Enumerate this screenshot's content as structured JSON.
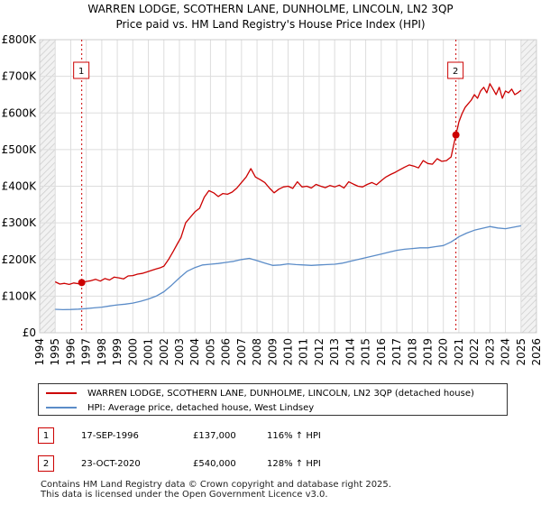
{
  "chart_data": {
    "type": "line",
    "title": "WARREN LODGE, SCOTHERN LANE, DUNHOLME, LINCOLN, LN2 3QP",
    "subtitle": "Price paid vs. HM Land Registry's House Price Index (HPI)",
    "xlim": [
      1994,
      2026
    ],
    "ylim": [
      0,
      800000
    ],
    "y_ticks": [
      0,
      100000,
      200000,
      300000,
      400000,
      500000,
      600000,
      700000,
      800000
    ],
    "y_tick_labels": [
      "£0",
      "£100K",
      "£200K",
      "£300K",
      "£400K",
      "£500K",
      "£600K",
      "£700K",
      "£800K"
    ],
    "x_ticks": [
      1994,
      1995,
      1996,
      1997,
      1998,
      1999,
      2000,
      2001,
      2002,
      2003,
      2004,
      2005,
      2006,
      2007,
      2008,
      2009,
      2010,
      2011,
      2012,
      2013,
      2014,
      2015,
      2016,
      2017,
      2018,
      2019,
      2020,
      2021,
      2022,
      2023,
      2024,
      2025,
      2026
    ],
    "x_tick_labels": [
      "1994",
      "1995",
      "1996",
      "1997",
      "1998",
      "1999",
      "2000",
      "2001",
      "2002",
      "2003",
      "2004",
      "2005",
      "2006",
      "2007",
      "2008",
      "2009",
      "2010",
      "2011",
      "2012",
      "2013",
      "2014",
      "2015",
      "2016",
      "2017",
      "2018",
      "2019",
      "2020",
      "2021",
      "2022",
      "2023",
      "2024",
      "2025",
      "2026"
    ],
    "grid": true,
    "hatched_ranges": [
      [
        1994,
        1995
      ],
      [
        2025,
        2026
      ]
    ],
    "series": [
      {
        "name": "WARREN LODGE, SCOTHERN LANE, DUNHOLME, LINCOLN, LN2 3QP (detached house)",
        "color": "#cc0000",
        "x": [
          1995.0,
          1995.3,
          1995.6,
          1995.9,
          1996.2,
          1996.5,
          1996.71,
          1997.0,
          1997.3,
          1997.6,
          1997.9,
          1998.2,
          1998.5,
          1998.8,
          1999.1,
          1999.4,
          1999.7,
          2000.0,
          2000.3,
          2000.6,
          2000.9,
          2001.2,
          2001.5,
          2001.8,
          2002.0,
          2002.3,
          2002.6,
          2002.9,
          2003.1,
          2003.4,
          2003.7,
          2004.0,
          2004.3,
          2004.6,
          2004.9,
          2005.2,
          2005.5,
          2005.8,
          2006.1,
          2006.4,
          2006.7,
          2007.0,
          2007.3,
          2007.6,
          2007.9,
          2008.2,
          2008.5,
          2008.8,
          2009.1,
          2009.4,
          2009.7,
          2010.0,
          2010.3,
          2010.6,
          2010.9,
          2011.2,
          2011.5,
          2011.8,
          2012.1,
          2012.4,
          2012.7,
          2013.0,
          2013.3,
          2013.6,
          2013.9,
          2014.2,
          2014.5,
          2014.8,
          2015.1,
          2015.4,
          2015.7,
          2016.0,
          2016.3,
          2016.6,
          2016.9,
          2017.2,
          2017.5,
          2017.8,
          2018.1,
          2018.4,
          2018.7,
          2019.0,
          2019.3,
          2019.6,
          2019.9,
          2020.2,
          2020.5,
          2020.81,
          2021.0,
          2021.2,
          2021.4,
          2021.6,
          2021.8,
          2022.0,
          2022.2,
          2022.4,
          2022.6,
          2022.8,
          2023.0,
          2023.2,
          2023.4,
          2023.6,
          2023.8,
          2024.0,
          2024.2,
          2024.4,
          2024.6,
          2024.8,
          2025.0
        ],
        "values": [
          139000,
          133000,
          135000,
          132000,
          136000,
          134000,
          137000,
          140000,
          142000,
          146000,
          141000,
          148000,
          144000,
          152000,
          150000,
          147000,
          155000,
          156000,
          160000,
          162000,
          166000,
          170000,
          174000,
          178000,
          182000,
          200000,
          222000,
          245000,
          260000,
          300000,
          315000,
          330000,
          340000,
          370000,
          388000,
          382000,
          372000,
          380000,
          378000,
          384000,
          395000,
          410000,
          425000,
          448000,
          425000,
          418000,
          410000,
          395000,
          382000,
          392000,
          398000,
          400000,
          394000,
          412000,
          398000,
          400000,
          395000,
          405000,
          400000,
          396000,
          402000,
          398000,
          403000,
          395000,
          412000,
          406000,
          400000,
          398000,
          405000,
          410000,
          404000,
          415000,
          425000,
          432000,
          438000,
          445000,
          452000,
          458000,
          455000,
          450000,
          470000,
          462000,
          460000,
          475000,
          468000,
          470000,
          480000,
          540000,
          575000,
          598000,
          615000,
          625000,
          635000,
          650000,
          640000,
          660000,
          670000,
          655000,
          680000,
          665000,
          650000,
          670000,
          640000,
          660000,
          655000,
          665000,
          650000,
          655000,
          662000
        ],
        "markers": [
          {
            "x": 1996.71,
            "y": 137000,
            "label": "1"
          },
          {
            "x": 2020.81,
            "y": 540000,
            "label": "2"
          }
        ]
      },
      {
        "name": "HPI: Average price, detached house, West Lindsey",
        "color": "#5b8cc8",
        "x": [
          1995.0,
          1995.5,
          1996.0,
          1996.5,
          1997.0,
          1997.5,
          1998.0,
          1998.5,
          1999.0,
          1999.5,
          2000.0,
          2000.5,
          2001.0,
          2001.5,
          2002.0,
          2002.5,
          2003.0,
          2003.5,
          2004.0,
          2004.5,
          2005.0,
          2005.5,
          2006.0,
          2006.5,
          2007.0,
          2007.5,
          2008.0,
          2008.5,
          2009.0,
          2009.5,
          2010.0,
          2010.5,
          2011.0,
          2011.5,
          2012.0,
          2012.5,
          2013.0,
          2013.5,
          2014.0,
          2014.5,
          2015.0,
          2015.5,
          2016.0,
          2016.5,
          2017.0,
          2017.5,
          2018.0,
          2018.5,
          2019.0,
          2019.5,
          2020.0,
          2020.5,
          2021.0,
          2021.5,
          2022.0,
          2022.5,
          2023.0,
          2023.5,
          2024.0,
          2024.5,
          2025.0
        ],
        "values": [
          64000,
          63000,
          63500,
          64500,
          66000,
          68000,
          70000,
          73000,
          76000,
          78000,
          81000,
          86000,
          92000,
          100000,
          112000,
          130000,
          150000,
          168000,
          178000,
          185000,
          187000,
          189000,
          192000,
          195000,
          200000,
          203000,
          197000,
          190000,
          184000,
          185000,
          188000,
          186000,
          185000,
          184000,
          185000,
          186000,
          187000,
          190000,
          195000,
          200000,
          205000,
          210000,
          215000,
          220000,
          225000,
          228000,
          230000,
          232000,
          232000,
          235000,
          238000,
          248000,
          262000,
          272000,
          280000,
          285000,
          290000,
          286000,
          284000,
          288000,
          292000
        ]
      }
    ]
  },
  "legend": {
    "items": [
      {
        "label": "WARREN LODGE, SCOTHERN LANE, DUNHOLME, LINCOLN, LN2 3QP (detached house)",
        "color": "#cc0000"
      },
      {
        "label": "HPI: Average price, detached house, West Lindsey",
        "color": "#5b8cc8"
      }
    ]
  },
  "sales": [
    {
      "num": "1",
      "date": "17-SEP-1996",
      "price": "£137,000",
      "hpi": "116% ↑ HPI"
    },
    {
      "num": "2",
      "date": "23-OCT-2020",
      "price": "£540,000",
      "hpi": "128% ↑ HPI"
    }
  ],
  "footer": {
    "line1": "Contains HM Land Registry data © Crown copyright and database right 2025.",
    "line2": "This data is licensed under the Open Government Licence v3.0."
  }
}
